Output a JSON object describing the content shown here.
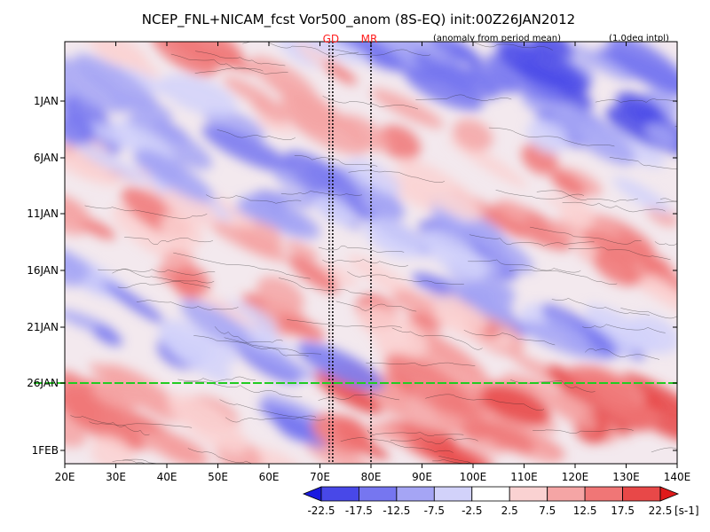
{
  "chart_data": {
    "type": "heatmap",
    "title": "NCEP_FNL+NICAM_fcst Vor500_anom (8S-EQ) init:00Z26JAN2012",
    "subtitle_left": "(anomaly from period mean)",
    "subtitle_right": "(1.0deg intpl)",
    "xlabel": "",
    "ylabel": "",
    "x_ticks": [
      "20E",
      "30E",
      "40E",
      "50E",
      "60E",
      "70E",
      "80E",
      "90E",
      "100E",
      "110E",
      "120E",
      "130E",
      "140E"
    ],
    "y_ticks": [
      "1JAN",
      "6JAN",
      "11JAN",
      "16JAN",
      "21JAN",
      "26JAN",
      "1FEB"
    ],
    "xlim": [
      20,
      140
    ],
    "markers": [
      {
        "label": "GD",
        "lon": 72.5
      },
      {
        "label": "MR",
        "lon": 80
      }
    ],
    "init_line_label": "26JAN",
    "colorbar": {
      "levels": [
        "-22.5",
        "-17.5",
        "-12.5",
        "-7.5",
        "-2.5",
        "2.5",
        "7.5",
        "12.5",
        "17.5",
        "22.5"
      ],
      "unit": "[s-1]",
      "colors": [
        "#1a1ae0",
        "#4848e8",
        "#7676f0",
        "#a5a5f5",
        "#d2d2fa",
        "#ffffff",
        "#fad2d2",
        "#f5a5a5",
        "#f07676",
        "#e84848",
        "#e01a1a"
      ]
    }
  }
}
